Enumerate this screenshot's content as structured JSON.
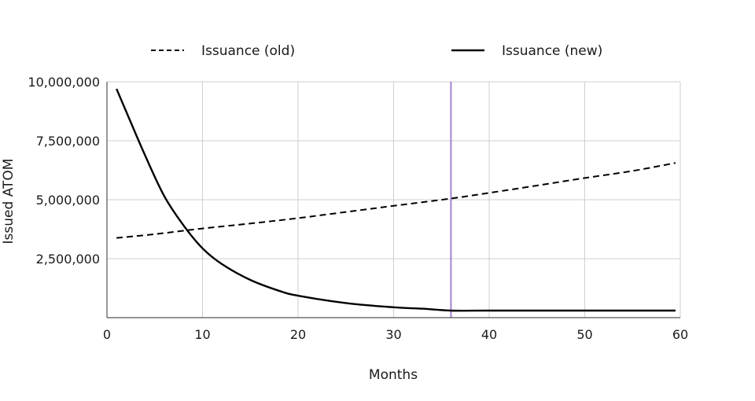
{
  "chart_data": {
    "type": "line",
    "title": "",
    "xlabel": "Months",
    "ylabel": "Issued ATOM",
    "xlim": [
      0,
      60
    ],
    "ylim": [
      0,
      10000000
    ],
    "x_ticks": [
      0,
      10,
      20,
      30,
      40,
      50,
      60
    ],
    "x_tick_labels": [
      "0",
      "10",
      "20",
      "30",
      "40",
      "50",
      "60"
    ],
    "y_ticks": [
      2500000,
      5000000,
      7500000,
      10000000
    ],
    "y_tick_labels": [
      "2,500,000",
      "5,000,000",
      "7,500,000",
      "10,000,000"
    ],
    "grid": true,
    "legend_position": "top",
    "series": [
      {
        "name": "Issuance (old)",
        "style": "dashed",
        "color": "#000000",
        "x": [
          1,
          5,
          10,
          15,
          20,
          25,
          30,
          36,
          40,
          45,
          50,
          55,
          59.5
        ],
        "values": [
          3380000,
          3540000,
          3780000,
          3990000,
          4220000,
          4480000,
          4740000,
          5050000,
          5290000,
          5600000,
          5920000,
          6220000,
          6560000
        ]
      },
      {
        "name": "Issuance (new)",
        "style": "solid",
        "color": "#000000",
        "x": [
          1,
          2,
          4,
          6,
          8,
          10,
          12,
          15,
          18,
          20,
          25,
          30,
          33,
          36,
          40,
          45,
          50,
          55,
          59.5
        ],
        "values": [
          9700000,
          8750000,
          6870000,
          5150000,
          3920000,
          2940000,
          2280000,
          1600000,
          1140000,
          930000,
          620000,
          440000,
          380000,
          300000,
          300000,
          300000,
          300000,
          300000,
          300000
        ]
      }
    ],
    "annotations": [
      {
        "type": "vertical-line",
        "x": 36,
        "color": "#a98bd8"
      }
    ]
  }
}
